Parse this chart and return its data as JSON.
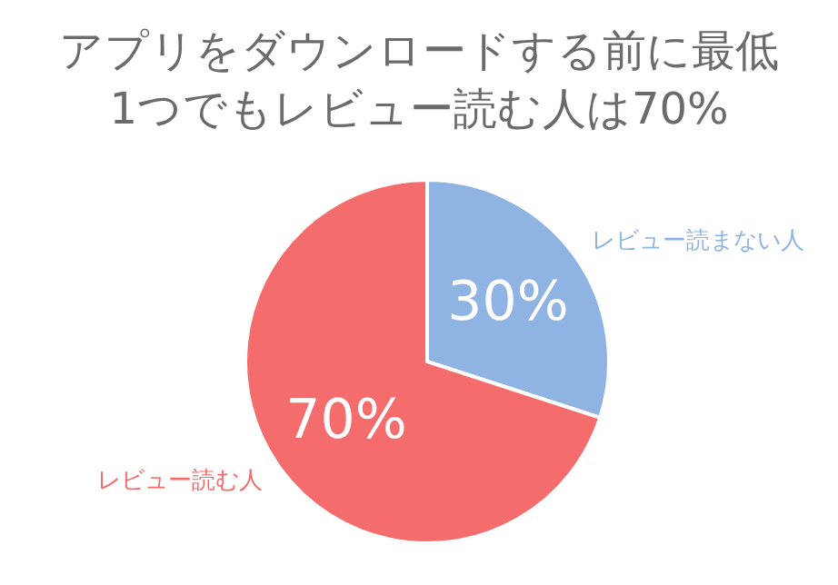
{
  "chart_data": {
    "type": "pie",
    "title": "アプリをダウンロードする前に最低1つでもレビュー読む人は70%",
    "categories": [
      "レビュー読まない人",
      "レビュー読む人"
    ],
    "values": [
      30,
      70
    ],
    "colors": [
      "#8fb4e3",
      "#f46c6c"
    ],
    "value_labels": [
      "30%",
      "70%"
    ]
  }
}
